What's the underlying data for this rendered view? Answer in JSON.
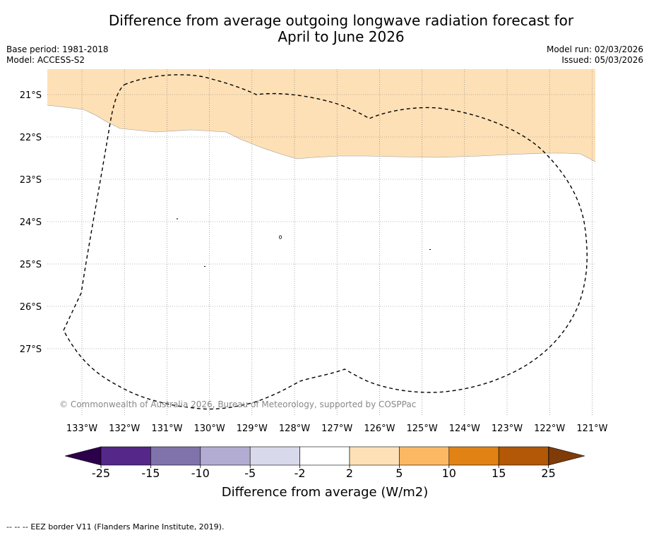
{
  "title": {
    "line1": "Difference from average outgoing longwave radiation forecast for",
    "line2": "April to June 2026"
  },
  "meta": {
    "base_period": "Base period: 1981-2018",
    "model": "Model: ACCESS-S2",
    "model_run": "Model run: 02/03/2026",
    "issued": "Issued: 05/03/2026"
  },
  "map": {
    "lon_labels": [
      "133°W",
      "132°W",
      "131°W",
      "130°W",
      "129°W",
      "128°W",
      "127°W",
      "126°W",
      "125°W",
      "124°W",
      "123°W",
      "122°W",
      "121°W"
    ],
    "lat_labels": [
      "21°S",
      "22°S",
      "23°S",
      "24°S",
      "25°S",
      "26°S",
      "27°S"
    ],
    "anomaly_region": {
      "category": "2 to 5",
      "color": "#fee0b6"
    },
    "copyright": "© Commonwealth of Australia 2026, Bureau of Meteorology, supported by COSPPac"
  },
  "colorbar": {
    "bins": [
      {
        "label": "-25 to -15",
        "color": "#542788"
      },
      {
        "label": "-15 to -10",
        "color": "#8073ac"
      },
      {
        "label": "-10 to -5",
        "color": "#b2abd2"
      },
      {
        "label": "-5 to -2",
        "color": "#d8daeb"
      },
      {
        "label": "-2 to 2",
        "color": "#ffffff"
      },
      {
        "label": "2 to 5",
        "color": "#fee0b6"
      },
      {
        "label": "5 to 10",
        "color": "#fdb863"
      },
      {
        "label": "10 to 15",
        "color": "#e08214"
      },
      {
        "label": "15 to 25",
        "color": "#b35806"
      }
    ],
    "under_color": "#2d004b",
    "over_color": "#7f3b08",
    "ticks": [
      "-25",
      "-15",
      "-10",
      "-5",
      "-2",
      "2",
      "5",
      "10",
      "15",
      "25"
    ],
    "label": "Difference from average (W/m2)"
  },
  "footer": {
    "legend_symbol": "--  --  --",
    "legend_text": "EEZ border V11 (Flanders Marine Institute, 2019)."
  }
}
